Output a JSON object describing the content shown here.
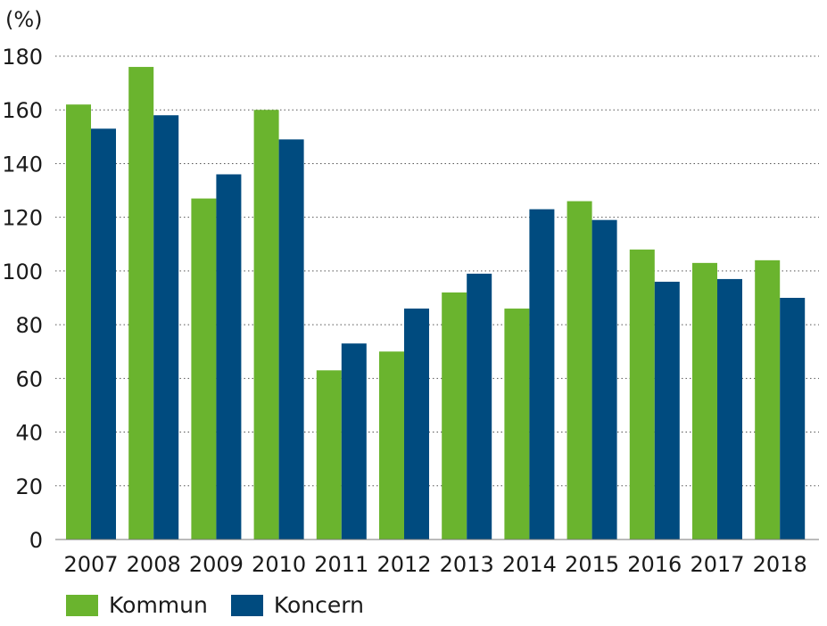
{
  "chart_data": {
    "type": "bar",
    "unit_label": "(%)",
    "categories": [
      "2007",
      "2008",
      "2009",
      "2010",
      "2011",
      "2012",
      "2013",
      "2014",
      "2015",
      "2016",
      "2017",
      "2018"
    ],
    "series": [
      {
        "name": "Kommun",
        "color": "#6ab42e",
        "values": [
          162,
          176,
          127,
          160,
          63,
          70,
          92,
          86,
          126,
          108,
          103,
          104
        ]
      },
      {
        "name": "Koncern",
        "color": "#004b7f",
        "values": [
          153,
          158,
          136,
          149,
          73,
          86,
          99,
          123,
          119,
          96,
          97,
          90
        ]
      }
    ],
    "ylim": [
      0,
      180
    ],
    "yticks": [
      0,
      20,
      40,
      60,
      80,
      100,
      120,
      140,
      160,
      180
    ],
    "grid": "horizontal-dotted",
    "legend_position": "bottom-left"
  }
}
